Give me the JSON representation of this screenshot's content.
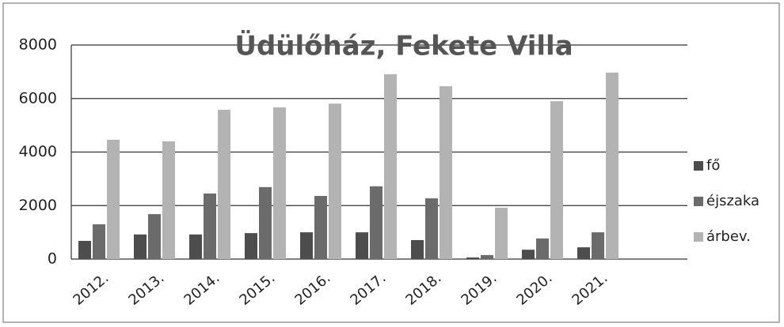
{
  "chart_data": {
    "type": "bar",
    "title": "Üdülőház, Fekete Villa",
    "categories": [
      "2012.",
      "2013.",
      "2014.",
      "2015.",
      "2016.",
      "2017.",
      "2018.",
      "2019.",
      "2020.",
      "2021."
    ],
    "series": [
      {
        "name": "fő",
        "color": "#4d4d4d",
        "values": [
          680,
          920,
          920,
          970,
          1000,
          1000,
          710,
          60,
          350,
          440
        ]
      },
      {
        "name": "éjszaka",
        "color": "#6b6b6b",
        "values": [
          1300,
          1680,
          2450,
          2690,
          2360,
          2720,
          2270,
          150,
          770,
          1000
        ]
      },
      {
        "name": "árbev.",
        "color": "#b3b3b3",
        "values": [
          4460,
          4400,
          5580,
          5670,
          5810,
          6910,
          6460,
          1920,
          5900,
          6970
        ]
      }
    ],
    "ylim": [
      0,
      8000
    ],
    "yticks": [
      0,
      2000,
      4000,
      6000,
      8000
    ],
    "grid": true,
    "legend": "right"
  }
}
